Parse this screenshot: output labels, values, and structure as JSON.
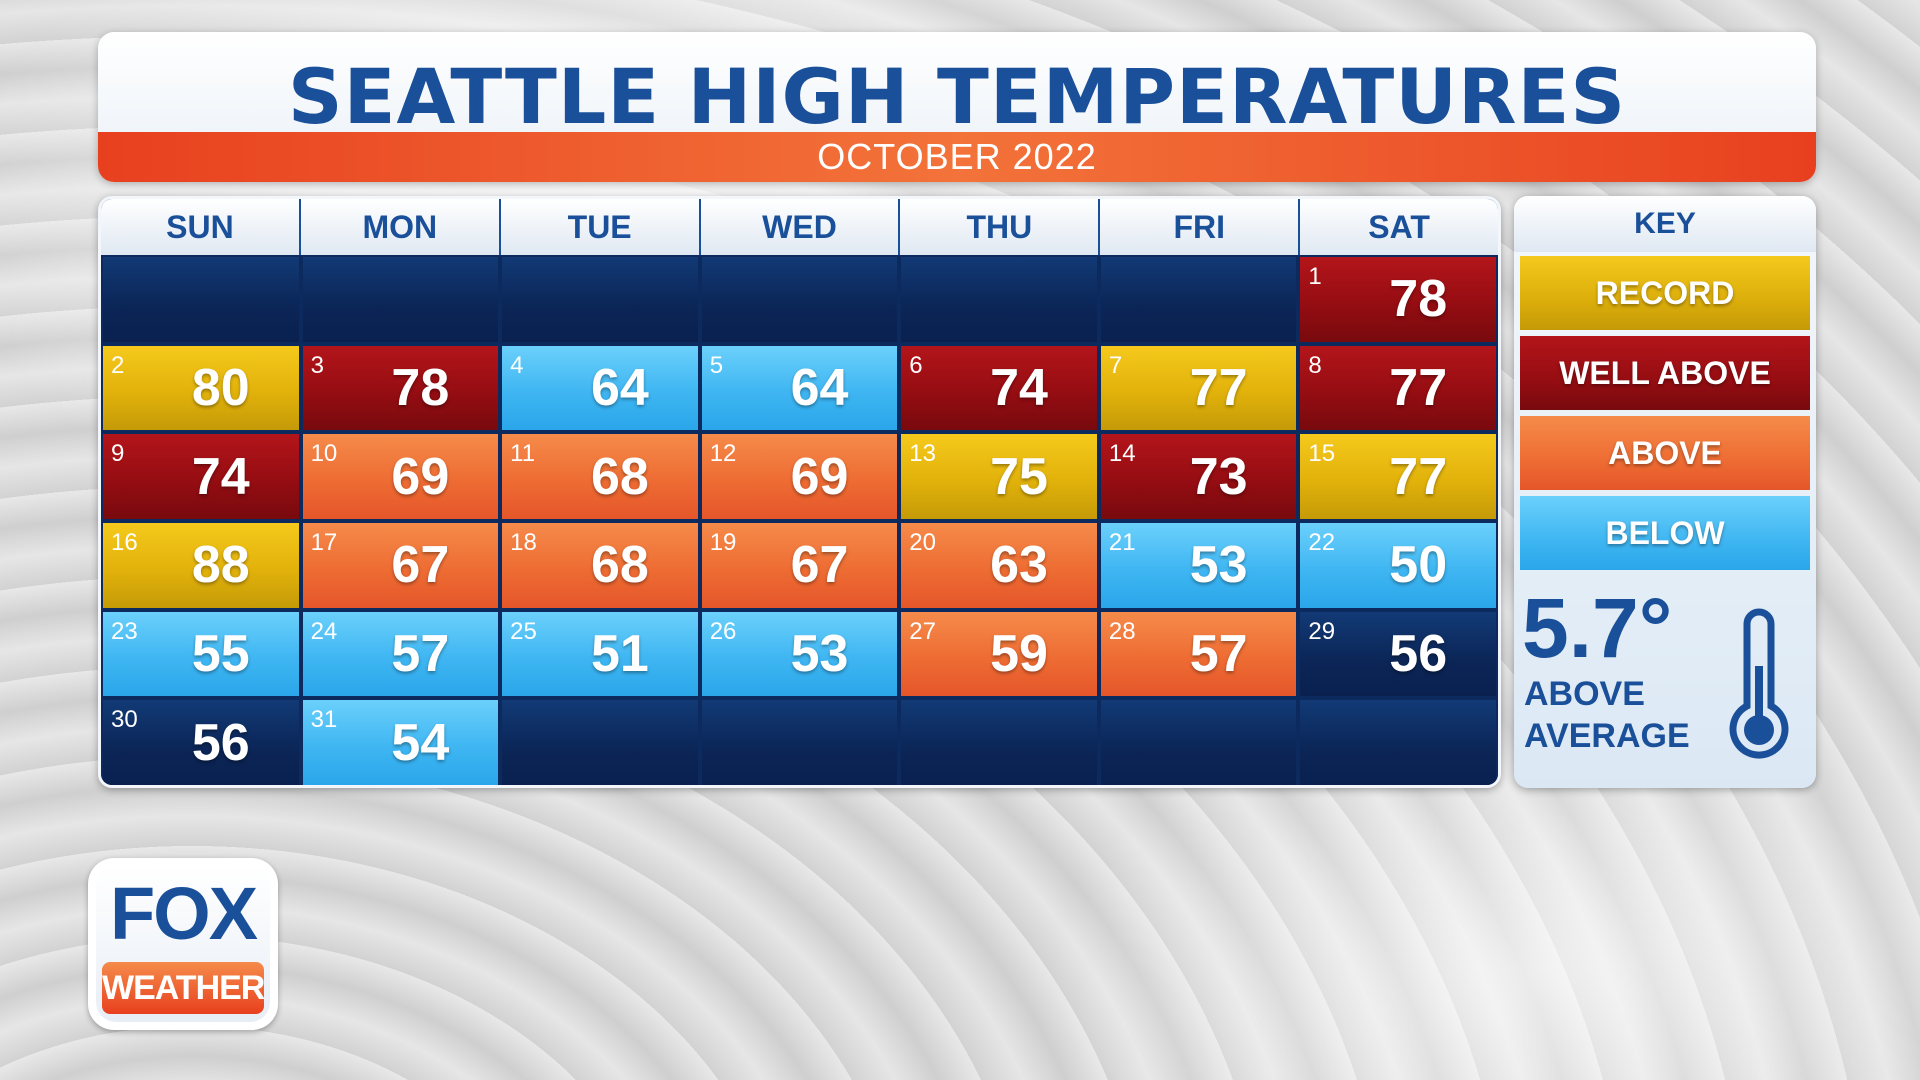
{
  "title": "SEATTLE HIGH TEMPERATURES",
  "subtitle": "OCTOBER 2022",
  "days_of_week": [
    "SUN",
    "MON",
    "TUE",
    "WED",
    "THU",
    "FRI",
    "SAT"
  ],
  "key": {
    "title": "KEY",
    "items": [
      {
        "label": "RECORD",
        "category": "record",
        "color": "#e2b20b"
      },
      {
        "label": "WELL ABOVE",
        "category": "wellabove",
        "color": "#950d12"
      },
      {
        "label": "ABOVE",
        "category": "above",
        "color": "#ee6c33"
      },
      {
        "label": "BELOW",
        "category": "below",
        "color": "#3fb6f2"
      }
    ],
    "anomaly_value": "5.7°",
    "anomaly_label_1": "ABOVE",
    "anomaly_label_2": "AVERAGE",
    "anomaly_icon": "thermometer-icon"
  },
  "logo": {
    "line1": "FOX",
    "line2": "WEATHER"
  },
  "chart_data": {
    "type": "table",
    "title": "SEATTLE HIGH TEMPERATURES",
    "subtitle": "OCTOBER 2022",
    "first_weekday_index": 6,
    "days": [
      {
        "day": 1,
        "high": 78,
        "category": "wellabove"
      },
      {
        "day": 2,
        "high": 80,
        "category": "record"
      },
      {
        "day": 3,
        "high": 78,
        "category": "wellabove"
      },
      {
        "day": 4,
        "high": 64,
        "category": "below"
      },
      {
        "day": 5,
        "high": 64,
        "category": "below"
      },
      {
        "day": 6,
        "high": 74,
        "category": "wellabove"
      },
      {
        "day": 7,
        "high": 77,
        "category": "record"
      },
      {
        "day": 8,
        "high": 77,
        "category": "wellabove"
      },
      {
        "day": 9,
        "high": 74,
        "category": "wellabove"
      },
      {
        "day": 10,
        "high": 69,
        "category": "above"
      },
      {
        "day": 11,
        "high": 68,
        "category": "above"
      },
      {
        "day": 12,
        "high": 69,
        "category": "above"
      },
      {
        "day": 13,
        "high": 75,
        "category": "record"
      },
      {
        "day": 14,
        "high": 73,
        "category": "wellabove"
      },
      {
        "day": 15,
        "high": 77,
        "category": "record"
      },
      {
        "day": 16,
        "high": 88,
        "category": "record"
      },
      {
        "day": 17,
        "high": 67,
        "category": "above"
      },
      {
        "day": 18,
        "high": 68,
        "category": "above"
      },
      {
        "day": 19,
        "high": 67,
        "category": "above"
      },
      {
        "day": 20,
        "high": 63,
        "category": "above"
      },
      {
        "day": 21,
        "high": 53,
        "category": "below"
      },
      {
        "day": 22,
        "high": 50,
        "category": "below"
      },
      {
        "day": 23,
        "high": 55,
        "category": "below"
      },
      {
        "day": 24,
        "high": 57,
        "category": "below"
      },
      {
        "day": 25,
        "high": 51,
        "category": "below"
      },
      {
        "day": 26,
        "high": 53,
        "category": "below"
      },
      {
        "day": 27,
        "high": 59,
        "category": "above"
      },
      {
        "day": 28,
        "high": 57,
        "category": "above"
      },
      {
        "day": 29,
        "high": 56,
        "category": "none"
      },
      {
        "day": 30,
        "high": 56,
        "category": "none"
      },
      {
        "day": 31,
        "high": 54,
        "category": "below"
      }
    ]
  }
}
